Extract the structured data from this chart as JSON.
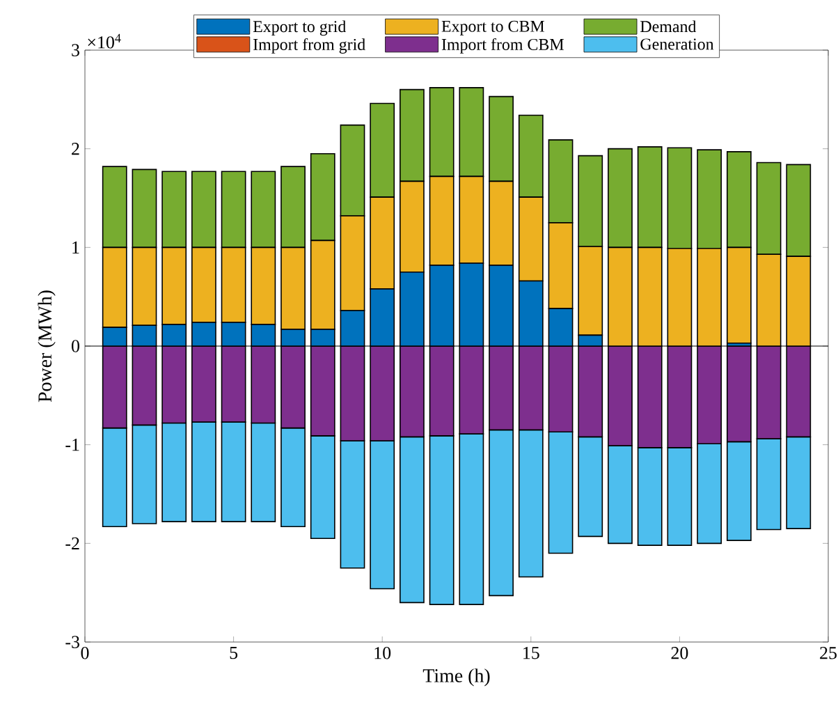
{
  "chart_data": {
    "type": "bar",
    "stacked": true,
    "xlabel": "Time (h)",
    "ylabel": "Power (MWh)",
    "x": [
      1,
      2,
      3,
      4,
      5,
      6,
      7,
      8,
      9,
      10,
      11,
      12,
      13,
      14,
      15,
      16,
      17,
      18,
      19,
      20,
      21,
      22,
      23,
      24
    ],
    "xlim": [
      0,
      25
    ],
    "xticks": [
      0,
      5,
      10,
      15,
      20,
      25
    ],
    "ylim": [
      -3,
      3
    ],
    "yticks": [
      -3,
      -2,
      -1,
      0,
      1,
      2,
      3
    ],
    "annotations": [
      "×10$^{4}$"
    ],
    "legend": "top",
    "series": [
      {
        "name": "Export to grid",
        "color": "#0072bd",
        "values": [
          0.19,
          0.21,
          0.22,
          0.24,
          0.24,
          0.22,
          0.17,
          0.17,
          0.36,
          0.58,
          0.75,
          0.82,
          0.84,
          0.82,
          0.66,
          0.38,
          0.11,
          0,
          0,
          0,
          0,
          0.03,
          0,
          0
        ]
      },
      {
        "name": "Export to CBM",
        "color": "#edb120",
        "values": [
          0.81,
          0.79,
          0.78,
          0.76,
          0.76,
          0.78,
          0.83,
          0.9,
          0.96,
          0.93,
          0.92,
          0.9,
          0.88,
          0.85,
          0.85,
          0.87,
          0.9,
          1.0,
          1.0,
          0.99,
          0.99,
          0.97,
          0.93,
          0.91
        ]
      },
      {
        "name": "Demand",
        "color": "#77ac30",
        "values": [
          0.82,
          0.79,
          0.77,
          0.77,
          0.77,
          0.77,
          0.82,
          0.88,
          0.92,
          0.95,
          0.93,
          0.9,
          0.9,
          0.86,
          0.83,
          0.84,
          0.92,
          1.0,
          1.02,
          1.02,
          1.0,
          0.97,
          0.93,
          0.93
        ]
      },
      {
        "name": "Import from grid",
        "color": "#d95319",
        "values": [
          0,
          0,
          0,
          0,
          0,
          0,
          0,
          0,
          0,
          0,
          0,
          0,
          0,
          0,
          0,
          0,
          0,
          0,
          0,
          0,
          0,
          0,
          0,
          0
        ]
      },
      {
        "name": "Import from CBM",
        "color": "#7e2f8e",
        "values": [
          -0.83,
          -0.8,
          -0.78,
          -0.77,
          -0.77,
          -0.78,
          -0.83,
          -0.91,
          -0.96,
          -0.96,
          -0.92,
          -0.91,
          -0.89,
          -0.85,
          -0.85,
          -0.87,
          -0.92,
          -1.01,
          -1.03,
          -1.03,
          -0.99,
          -0.97,
          -0.94,
          -0.92
        ]
      },
      {
        "name": "Generation",
        "color": "#4dbeee",
        "values": [
          -1.0,
          -1.0,
          -1.0,
          -1.01,
          -1.01,
          -1.0,
          -1.0,
          -1.04,
          -1.29,
          -1.5,
          -1.68,
          -1.71,
          -1.73,
          -1.68,
          -1.49,
          -1.23,
          -1.01,
          -0.99,
          -0.99,
          -0.99,
          -1.01,
          -1.0,
          -0.92,
          -0.93
        ]
      }
    ]
  }
}
